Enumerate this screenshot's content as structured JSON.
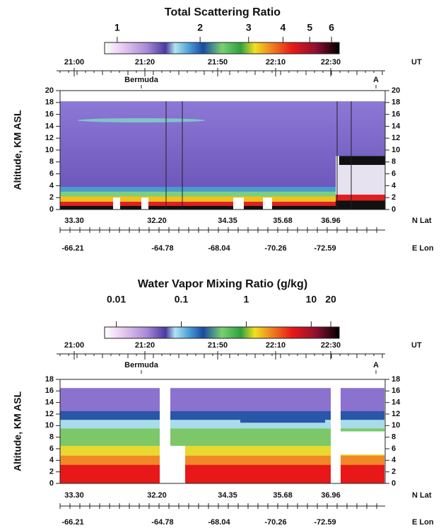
{
  "chart_data": [
    {
      "type": "curtain",
      "title": "Total Scattering Ratio",
      "colorbar": {
        "scale": "log",
        "lim": [
          0.9,
          6.4
        ],
        "ticks": [
          1,
          2,
          3,
          4,
          5,
          6
        ]
      },
      "time_ticks": [
        "21:00",
        "21:20",
        "21:50",
        "22:10",
        "22:30"
      ],
      "time_unit": "UT",
      "markers": [
        "Bermuda",
        "A"
      ],
      "ylabel": "Altitude, KM ASL",
      "ylim": [
        0,
        20
      ],
      "yticks": [
        0,
        2,
        4,
        6,
        8,
        10,
        12,
        14,
        16,
        18,
        20
      ],
      "lat_label": "N Lat",
      "lat_ticks": [
        "33.30",
        "32.20",
        "34.35",
        "35.68",
        "36.96"
      ],
      "lon_label": "E Lon",
      "lon_ticks": [
        "-66.21",
        "-64.78",
        "-68.04",
        "-70.26",
        "-72.59"
      ]
    },
    {
      "type": "curtain",
      "title": "Water Vapor Mixing Ratio (g/kg)",
      "colorbar": {
        "scale": "log",
        "lim": [
          0.0066,
          27
        ],
        "ticks": [
          0.01,
          0.1,
          1,
          10,
          20
        ]
      },
      "time_ticks": [
        "21:00",
        "21:20",
        "21:50",
        "22:10",
        "22:30"
      ],
      "time_unit": "UT",
      "markers": [
        "Bermuda",
        "A"
      ],
      "ylabel": "Altitude, KM ASL",
      "ylim": [
        0,
        18
      ],
      "yticks": [
        0,
        2,
        4,
        6,
        8,
        10,
        12,
        14,
        16,
        18
      ],
      "lat_label": "N Lat",
      "lat_ticks": [
        "33.30",
        "32.20",
        "34.35",
        "35.68",
        "36.96"
      ],
      "lon_label": "E Lon",
      "lon_ticks": [
        "-66.21",
        "-64.78",
        "-68.04",
        "-70.26",
        "-72.59"
      ]
    }
  ]
}
